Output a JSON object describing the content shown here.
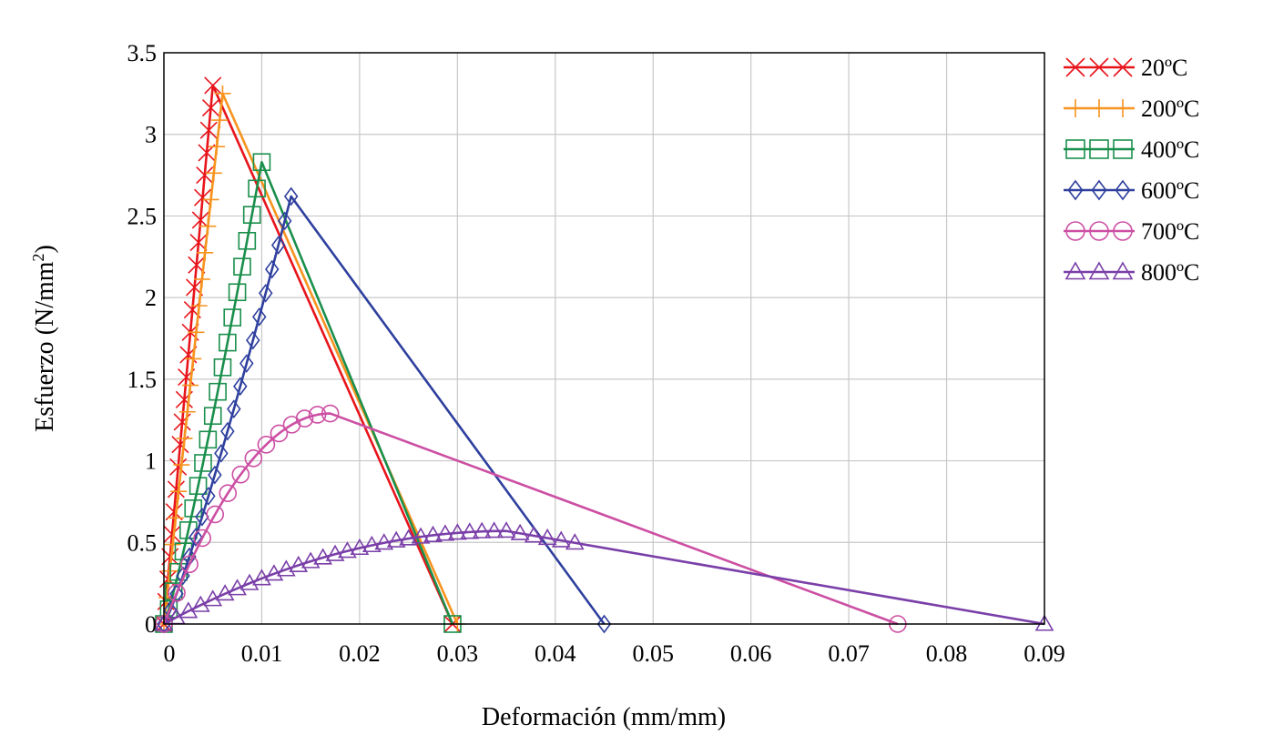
{
  "chart_data": {
    "type": "line",
    "title": "",
    "xlabel": "Deformación (mm/mm)",
    "ylabel_main": "Esfuerzo (N/mm",
    "ylabel_sup": "2",
    "ylabel_close": ")",
    "xlim": [
      0,
      0.09
    ],
    "ylim": [
      0,
      3.5
    ],
    "x_ticks": [
      0,
      0.01,
      0.02,
      0.03,
      0.04,
      0.05,
      0.06,
      0.07,
      0.08,
      0.09
    ],
    "x_tick_labels": [
      "0",
      "0.01",
      "0.02",
      "0.03",
      "0.04",
      "0.05",
      "0.06",
      "0.07",
      "0.08",
      "0.09"
    ],
    "y_ticks": [
      0,
      0.5,
      1,
      1.5,
      2,
      2.5,
      3,
      3.5
    ],
    "y_tick_labels": [
      "0",
      "0.5",
      "1",
      "1.5",
      "2",
      "2.5",
      "3",
      "3.5"
    ],
    "grid": true,
    "legend_position": "outside-right-top",
    "series": [
      {
        "name": "20ºC",
        "color": "#e8141b",
        "marker": "x",
        "peak_x": 0.005,
        "peak_y": 3.3,
        "end_x": 0.0295,
        "rise_exp": 1.0,
        "marker_count": 24
      },
      {
        "name": "200ºC",
        "color": "#f7931e",
        "marker": "plus",
        "peak_x": 0.006,
        "peak_y": 3.25,
        "end_x": 0.03,
        "rise_exp": 1.0,
        "marker_count": 20
      },
      {
        "name": "400ºC",
        "color": "#1a8f4c",
        "marker": "square",
        "peak_x": 0.01,
        "peak_y": 2.83,
        "end_x": 0.0295,
        "rise_exp": 1.15,
        "marker_count": 20
      },
      {
        "name": "600ºC",
        "color": "#2e3f9e",
        "marker": "diamond",
        "peak_x": 0.013,
        "peak_y": 2.62,
        "end_x": 0.045,
        "rise_exp": 1.15,
        "marker_count": 20
      },
      {
        "name": "700ºC",
        "color": "#cc4fa3",
        "marker": "circle",
        "peak_x": 0.017,
        "peak_y": 1.29,
        "end_x": 0.075,
        "rise_exp": 1.0,
        "marker_count": 13
      },
      {
        "name": "800ºC",
        "color": "#7a3fa8",
        "marker": "triangle",
        "peak_x": 0.035,
        "peak_y": 0.57,
        "end_x": 0.09,
        "rise_exp": 1.0,
        "marker_count": 28
      }
    ]
  }
}
